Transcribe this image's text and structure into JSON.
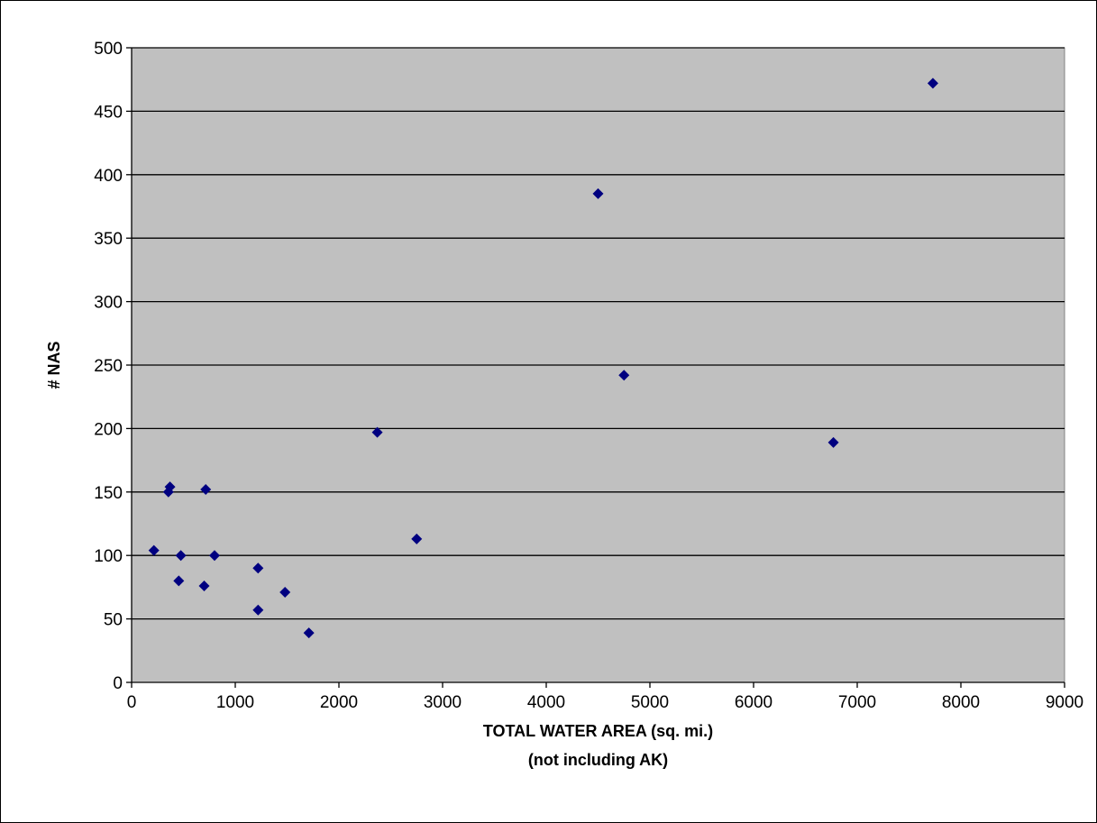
{
  "chart_data": {
    "type": "scatter",
    "title": "",
    "xlabel_lines": [
      "TOTAL WATER AREA (sq. mi.)",
      "(not including AK)"
    ],
    "ylabel": "# NAS",
    "xlim": [
      0,
      9000
    ],
    "ylim": [
      0,
      500
    ],
    "xticks": [
      0,
      1000,
      2000,
      3000,
      4000,
      5000,
      6000,
      7000,
      8000,
      9000
    ],
    "yticks": [
      0,
      50,
      100,
      150,
      200,
      250,
      300,
      350,
      400,
      450,
      500
    ],
    "grid": "horizontal",
    "legend": "none",
    "colors": {
      "plot_background": "#c0c0c0",
      "marker": "#000080",
      "gridline": "#000000"
    },
    "points": [
      {
        "x": 215,
        "y": 104
      },
      {
        "x": 355,
        "y": 150
      },
      {
        "x": 370,
        "y": 154
      },
      {
        "x": 455,
        "y": 80
      },
      {
        "x": 475,
        "y": 100
      },
      {
        "x": 700,
        "y": 76
      },
      {
        "x": 715,
        "y": 152
      },
      {
        "x": 800,
        "y": 100
      },
      {
        "x": 1220,
        "y": 90
      },
      {
        "x": 1220,
        "y": 57
      },
      {
        "x": 1480,
        "y": 71
      },
      {
        "x": 1710,
        "y": 39
      },
      {
        "x": 2370,
        "y": 197
      },
      {
        "x": 2750,
        "y": 113
      },
      {
        "x": 4500,
        "y": 385
      },
      {
        "x": 4750,
        "y": 242
      },
      {
        "x": 6770,
        "y": 189
      },
      {
        "x": 7730,
        "y": 472
      }
    ]
  }
}
